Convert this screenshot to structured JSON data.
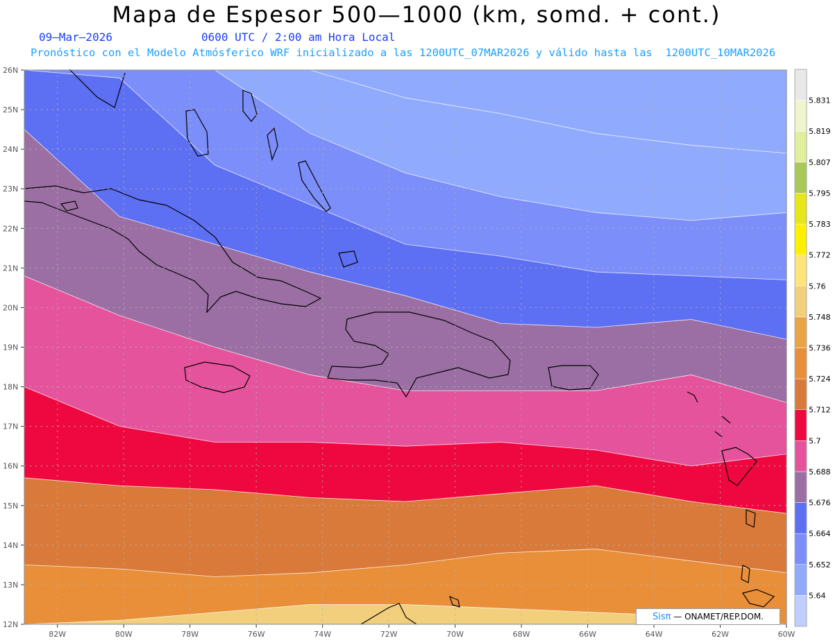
{
  "header": {
    "title": "Mapa de Espesor 500—1000 (km, somd. + cont.)",
    "date": "09—Mar—2026",
    "time": "0600 UTC / 2:00 am Hora Local",
    "subtitle": "Pronóstico con el Modelo Atmósferico WRF inicializado a las 1200UTC_07MAR2026 y válido hasta las  1200UTC_10MAR2026"
  },
  "map": {
    "lat_range": [
      12,
      26
    ],
    "lon_range": [
      -83,
      -60
    ],
    "lat_labels": [
      "12N",
      "13N",
      "14N",
      "15N",
      "16N",
      "17N",
      "18N",
      "19N",
      "20N",
      "21N",
      "22N",
      "23N",
      "24N",
      "25N",
      "26N"
    ],
    "lon_labels": [
      "82W",
      "80W",
      "78W",
      "76W",
      "74W",
      "72W",
      "70W",
      "68W",
      "66W",
      "64W",
      "62W",
      "60W"
    ],
    "bands": [
      {
        "level": 5.748,
        "color": "#f2cf7c"
      },
      {
        "level": 5.736,
        "color": "#eba445"
      },
      {
        "level": 5.724,
        "color": "#e98f3a"
      },
      {
        "level": 5.712,
        "color": "#da7a3a"
      },
      {
        "level": 5.7,
        "color": "#ef073f"
      },
      {
        "level": 5.688,
        "color": "#e5539c"
      },
      {
        "level": 5.676,
        "color": "#9b6fa3"
      },
      {
        "level": 5.664,
        "color": "#5d6ff2"
      },
      {
        "level": 5.652,
        "color": "#7c8ef9"
      },
      {
        "level": 5.64,
        "color": "#90abfd"
      }
    ],
    "boundaries": [
      {
        "between": "5.748 / 5.736",
        "lat": [
          12.0,
          12.1,
          12.3,
          12.5,
          12.5,
          12.4,
          12.3,
          12.2,
          12.0
        ]
      },
      {
        "between": "5.736 / 5.724",
        "lat": [
          13.5,
          13.4,
          13.2,
          13.3,
          13.5,
          13.8,
          13.9,
          13.6,
          13.3
        ]
      },
      {
        "between": "5.724 / 5.712",
        "lat": [
          15.7,
          15.5,
          15.4,
          15.2,
          15.1,
          15.3,
          15.5,
          15.1,
          14.8
        ]
      },
      {
        "between": "5.712 / 5.700",
        "lat": [
          18.0,
          17.0,
          16.6,
          16.6,
          16.5,
          16.6,
          16.4,
          16.0,
          16.3
        ]
      },
      {
        "between": "5.700 / 5.688",
        "lat": [
          20.8,
          19.8,
          19.0,
          18.3,
          17.9,
          17.9,
          17.9,
          18.3,
          17.6
        ]
      },
      {
        "between": "5.688 / 5.676",
        "lat": [
          24.5,
          22.3,
          21.6,
          20.9,
          20.3,
          19.6,
          19.5,
          19.7,
          19.2
        ]
      },
      {
        "between": "5.676 / 5.664",
        "lat": [
          26.0,
          25.8,
          23.6,
          22.6,
          21.6,
          21.3,
          20.9,
          20.8,
          20.7
        ]
      },
      {
        "between": "5.664 / 5.652",
        "lat": [
          26.0,
          26.0,
          26.0,
          24.4,
          23.4,
          22.8,
          22.4,
          22.2,
          22.4
        ]
      },
      {
        "between": "5.652 / 5.640",
        "lat": [
          26.0,
          26.0,
          26.0,
          26.0,
          25.3,
          24.9,
          24.4,
          24.1,
          23.9
        ]
      }
    ],
    "top_band": {
      "color": "#b9c8ff"
    }
  },
  "colorbar": {
    "labels": [
      "5.64",
      "5.652",
      "5.664",
      "5.676",
      "5.688",
      "5.7",
      "5.712",
      "5.724",
      "5.736",
      "5.748",
      "5.76",
      "5.772",
      "5.783",
      "5.795",
      "5.807",
      "5.819",
      "5.831"
    ],
    "colors": [
      "#bfcdff",
      "#90abfd",
      "#7c8ef9",
      "#5d6ff2",
      "#9b6fa3",
      "#e5539c",
      "#ef073f",
      "#da7a3a",
      "#e98f3a",
      "#eba445",
      "#f2cf7c",
      "#ffe47a",
      "#fff000",
      "#e6e61a",
      "#a8c957",
      "#e0f09a",
      "#f0f5cf",
      "#e9e9e9"
    ]
  },
  "credit": {
    "logo": "Sisπ",
    "text": "— ONAMET/REP.DOM."
  }
}
